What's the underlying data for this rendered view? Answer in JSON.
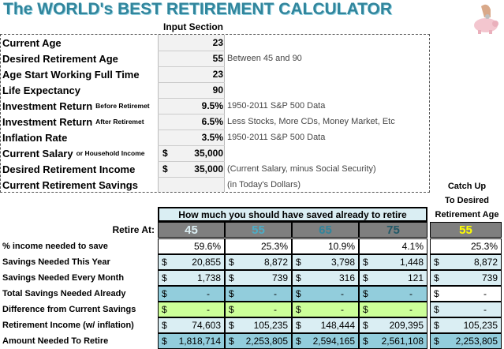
{
  "header": {
    "title": "The WORLD's BEST RETIREMENT CALCULATOR",
    "input_section": "Input Section"
  },
  "inputs": [
    {
      "label": "Current Age",
      "value": "23"
    },
    {
      "label": "Desired Retirement Age",
      "value": "55",
      "note": "Between 45 and 90"
    },
    {
      "label": "Age Start Working Full Time",
      "value": "23"
    },
    {
      "label": "Life Expectancy",
      "value": "90"
    },
    {
      "label": "Investment Return",
      "sublabel": "Before Retiremet",
      "value": "9.5%",
      "note": "1950-2011 S&P 500 Data"
    },
    {
      "label": "Investment Return",
      "sublabel": "After Retiremet",
      "value": "6.5%",
      "note": "Less Stocks, More CDs, Money Market, Etc"
    },
    {
      "label": "Inflation Rate",
      "value": "3.5%",
      "note": "1950-2011 S&P 500 Data"
    },
    {
      "label": "Current Salary",
      "sublabel": "or Household Income",
      "prefix": "$",
      "value": "35,000"
    },
    {
      "label": "Desired Retirement Income",
      "prefix": "$",
      "value": "35,000",
      "note": "(Current Salary, minus Social Security)"
    },
    {
      "label": "Current Retirement Savings",
      "note": "(in Today's Dollars)"
    }
  ],
  "catch_up_header": [
    "Catch Up",
    "To Desired",
    "Retirement Age"
  ],
  "results": {
    "banner": "How much you should have saved already to retire",
    "retire_at_label": "Retire At:",
    "retire_ages": [
      "45",
      "55",
      "65",
      "75",
      "55"
    ],
    "rows": [
      {
        "label": "% income needed to save",
        "values": [
          "59.6%",
          "25.3%",
          "10.9%",
          "4.1%",
          "25.3%"
        ]
      },
      {
        "label": "Savings Needed This Year",
        "prefix": "$",
        "values": [
          "20,855",
          "8,872",
          "3,798",
          "1,448",
          "8,872"
        ]
      },
      {
        "label": "Savings Needed Every Month",
        "prefix": "$",
        "values": [
          "1,738",
          "739",
          "316",
          "121",
          "739"
        ]
      },
      {
        "label": "Total Savings Needed Already",
        "prefix": "$",
        "values": [
          "-",
          "-",
          "-",
          "-",
          "-"
        ]
      },
      {
        "label": "Difference from Current Savings",
        "prefix": "$",
        "values": [
          "-",
          "-",
          "-",
          "-",
          "-"
        ]
      },
      {
        "label": "Retirement Income (w/ inflation)",
        "prefix": "$",
        "values": [
          "74,603",
          "105,235",
          "148,444",
          "209,395",
          "105,235"
        ]
      },
      {
        "label": "Amount Needed To Retire",
        "prefix": "$",
        "values": [
          "1,818,714",
          "2,253,805",
          "2,594,165",
          "2,561,108",
          "2,253,805"
        ]
      }
    ]
  }
}
